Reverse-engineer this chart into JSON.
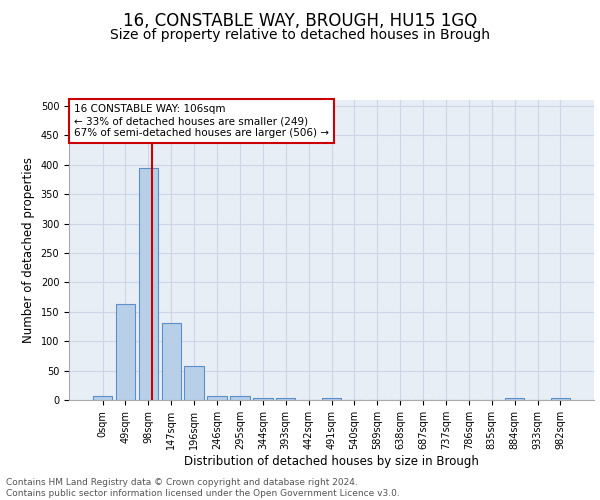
{
  "title": "16, CONSTABLE WAY, BROUGH, HU15 1GQ",
  "subtitle": "Size of property relative to detached houses in Brough",
  "xlabel": "Distribution of detached houses by size in Brough",
  "ylabel": "Number of detached properties",
  "bar_values": [
    6,
    163,
    394,
    131,
    57,
    7,
    7,
    4,
    4,
    0,
    4,
    0,
    0,
    0,
    0,
    0,
    0,
    0,
    4,
    0,
    4
  ],
  "bar_labels": [
    "0sqm",
    "49sqm",
    "98sqm",
    "147sqm",
    "196sqm",
    "246sqm",
    "295sqm",
    "344sqm",
    "393sqm",
    "442sqm",
    "491sqm",
    "540sqm",
    "589sqm",
    "638sqm",
    "687sqm",
    "737sqm",
    "786sqm",
    "835sqm",
    "884sqm",
    "933sqm",
    "982sqm"
  ],
  "bar_color": "#b8cfe8",
  "bar_edge_color": "#5b8fc9",
  "grid_color": "#ccd6e8",
  "background_color": "#e8eef5",
  "vline_color": "#cc0000",
  "annotation_text": "16 CONSTABLE WAY: 106sqm\n← 33% of detached houses are smaller (249)\n67% of semi-detached houses are larger (506) →",
  "annotation_box_color": "#cc0000",
  "ylim": [
    0,
    510
  ],
  "yticks": [
    0,
    50,
    100,
    150,
    200,
    250,
    300,
    350,
    400,
    450,
    500
  ],
  "footer_text": "Contains HM Land Registry data © Crown copyright and database right 2024.\nContains public sector information licensed under the Open Government Licence v3.0.",
  "title_fontsize": 12,
  "subtitle_fontsize": 10,
  "xlabel_fontsize": 8.5,
  "ylabel_fontsize": 8.5,
  "tick_fontsize": 7,
  "annotation_fontsize": 7.5,
  "footer_fontsize": 6.5
}
